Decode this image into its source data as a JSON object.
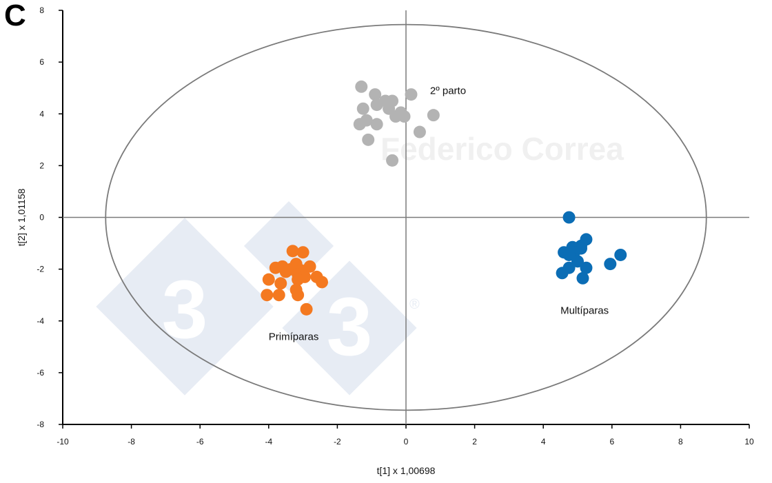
{
  "panel_label": "C",
  "watermark": {
    "text": "Federico Correa",
    "logo_digit": "3",
    "logo_mark": "®",
    "tile_color": "#e7ecf4"
  },
  "chart_data": {
    "type": "scatter",
    "title": "",
    "xlabel": "t[1] x 1,00698",
    "ylabel": "t[2] x 1,01158",
    "xlim": [
      -10,
      10
    ],
    "ylim": [
      -8,
      8
    ],
    "x_ticks": [
      -10,
      -8,
      -6,
      -4,
      -2,
      0,
      2,
      4,
      6,
      8,
      10
    ],
    "y_ticks": [
      -8,
      -6,
      -4,
      -2,
      0,
      2,
      4,
      6,
      8
    ],
    "ellipse": {
      "center": [
        0,
        0
      ],
      "rx": 8.75,
      "ry": 7.45,
      "color": "#7a7a7a"
    },
    "reference_lines": {
      "x": 0,
      "y": 0,
      "color": "#7a7a7a"
    },
    "series": [
      {
        "name": "2º parto",
        "color": "#b3b3b3",
        "label_position": [
          0.7,
          4.9
        ],
        "points": [
          [
            -1.3,
            5.05
          ],
          [
            -0.9,
            4.75
          ],
          [
            0.15,
            4.75
          ],
          [
            -0.6,
            4.5
          ],
          [
            -0.4,
            4.5
          ],
          [
            -0.85,
            4.35
          ],
          [
            -1.25,
            4.2
          ],
          [
            -0.5,
            4.2
          ],
          [
            -0.15,
            4.05
          ],
          [
            0.8,
            3.95
          ],
          [
            -0.3,
            3.9
          ],
          [
            -0.05,
            3.9
          ],
          [
            -1.15,
            3.75
          ],
          [
            -1.35,
            3.6
          ],
          [
            -0.85,
            3.6
          ],
          [
            0.4,
            3.3
          ],
          [
            -1.1,
            3.0
          ],
          [
            -0.4,
            2.2
          ]
        ]
      },
      {
        "name": "Primíparas",
        "color": "#f47920",
        "label_position": [
          -4.0,
          -4.6
        ],
        "points": [
          [
            -3.3,
            -1.3
          ],
          [
            -3.0,
            -1.35
          ],
          [
            -3.2,
            -1.8
          ],
          [
            -3.6,
            -1.9
          ],
          [
            -3.8,
            -1.95
          ],
          [
            -2.8,
            -1.9
          ],
          [
            -3.35,
            -2.0
          ],
          [
            -3.05,
            -2.05
          ],
          [
            -3.5,
            -2.1
          ],
          [
            -3.15,
            -2.2
          ],
          [
            -2.95,
            -2.3
          ],
          [
            -2.6,
            -2.3
          ],
          [
            -3.15,
            -2.4
          ],
          [
            -4.0,
            -2.4
          ],
          [
            -3.65,
            -2.55
          ],
          [
            -2.45,
            -2.5
          ],
          [
            -3.2,
            -2.8
          ],
          [
            -3.15,
            -3.0
          ],
          [
            -3.7,
            -3.0
          ],
          [
            -4.05,
            -3.0
          ],
          [
            -2.9,
            -3.55
          ]
        ]
      },
      {
        "name": "Multíparas",
        "color": "#0b6db5",
        "label_position": [
          4.5,
          -3.6
        ],
        "points": [
          [
            4.75,
            0.0
          ],
          [
            5.25,
            -0.85
          ],
          [
            5.1,
            -1.1
          ],
          [
            4.85,
            -1.15
          ],
          [
            5.1,
            -1.2
          ],
          [
            4.6,
            -1.35
          ],
          [
            4.9,
            -1.35
          ],
          [
            4.75,
            -1.45
          ],
          [
            6.25,
            -1.45
          ],
          [
            5.0,
            -1.7
          ],
          [
            4.75,
            -1.95
          ],
          [
            5.25,
            -1.95
          ],
          [
            5.95,
            -1.8
          ],
          [
            4.55,
            -2.15
          ],
          [
            5.15,
            -2.35
          ]
        ]
      }
    ]
  }
}
